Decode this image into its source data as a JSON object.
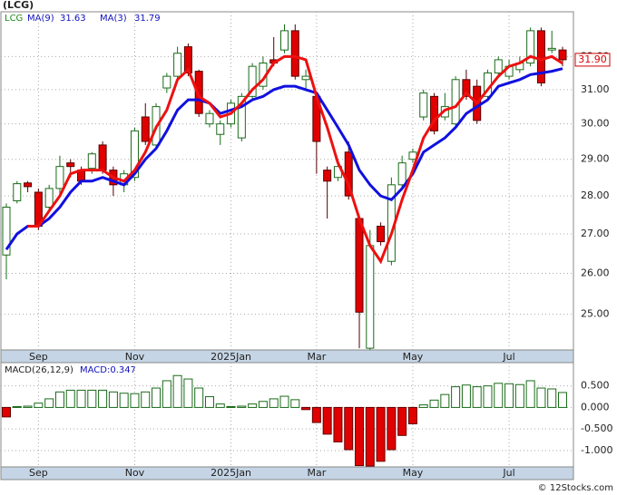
{
  "chart_data": {
    "type": "candlestick",
    "title": "(LCG)",
    "log": true,
    "grid": true,
    "categories": [
      null,
      null,
      null,
      "Sep",
      null,
      null,
      null,
      null,
      null,
      null,
      null,
      null,
      "Nov",
      null,
      null,
      null,
      null,
      null,
      null,
      null,
      null,
      "2025Jan",
      null,
      null,
      null,
      null,
      null,
      null,
      null,
      "Mar",
      null,
      null,
      null,
      null,
      null,
      null,
      null,
      null,
      "May",
      null,
      null,
      null,
      null,
      null,
      null,
      null,
      null,
      "Jul",
      null,
      null,
      null,
      null,
      null
    ],
    "candles": {
      "name": "LCG",
      "up_color": "#1a6b1a",
      "down_color": "#e00000",
      "open": [
        26.46,
        27.87,
        28.35,
        28.1,
        27.7,
        28.2,
        28.9,
        28.7,
        28.75,
        29.4,
        28.7,
        28.3,
        28.5,
        30.2,
        29.4,
        31.05,
        31.4,
        32.3,
        31.55,
        30.0,
        29.7,
        30.0,
        29.6,
        30.8,
        31.1,
        31.9,
        32.2,
        32.8,
        31.3,
        30.8,
        28.7,
        28.5,
        29.2,
        27.4,
        24.2,
        27.2,
        26.3,
        28.3,
        29.0,
        30.2,
        30.8,
        30.2,
        30.0,
        31.3,
        31.1,
        30.8,
        31.5,
        31.4,
        31.6,
        31.8,
        32.8,
        32.2,
        32.2
      ],
      "high": [
        27.8,
        28.4,
        28.4,
        28.2,
        28.3,
        29.1,
        29.0,
        28.8,
        29.2,
        29.5,
        28.8,
        28.7,
        29.9,
        30.6,
        30.6,
        31.5,
        32.3,
        32.4,
        31.6,
        30.4,
        30.1,
        30.7,
        30.9,
        31.8,
        32.0,
        32.6,
        33.0,
        33.0,
        31.6,
        30.9,
        28.8,
        29.0,
        29.5,
        27.5,
        27.1,
        27.3,
        28.5,
        29.1,
        29.3,
        31.0,
        30.9,
        30.9,
        31.4,
        31.6,
        31.3,
        31.6,
        32.0,
        31.9,
        32.0,
        32.9,
        32.9,
        32.8,
        32.3
      ],
      "low": [
        25.85,
        27.8,
        28.1,
        27.1,
        27.6,
        28.0,
        28.5,
        28.3,
        28.6,
        28.6,
        28.0,
        28.1,
        28.4,
        29.4,
        29.3,
        30.9,
        31.3,
        31.4,
        30.2,
        29.9,
        29.4,
        29.9,
        29.5,
        30.7,
        31.0,
        31.7,
        32.1,
        31.3,
        31.0,
        28.6,
        27.4,
        28.4,
        27.9,
        24.2,
        24.16,
        26.7,
        26.2,
        28.2,
        28.9,
        30.1,
        29.7,
        30.1,
        29.9,
        30.7,
        30.0,
        30.7,
        31.4,
        31.3,
        31.5,
        31.7,
        31.1,
        32.1,
        31.7
      ],
      "close": [
        27.7,
        28.33,
        28.25,
        27.2,
        28.2,
        28.8,
        28.8,
        28.4,
        29.15,
        28.7,
        28.3,
        28.6,
        29.8,
        29.5,
        30.5,
        31.4,
        32.1,
        31.5,
        30.3,
        30.3,
        30.0,
        30.6,
        30.8,
        31.7,
        31.8,
        31.8,
        32.8,
        31.4,
        31.4,
        29.5,
        28.4,
        28.8,
        28.0,
        25.05,
        26.7,
        26.8,
        28.3,
        28.9,
        29.2,
        30.9,
        29.8,
        30.5,
        31.3,
        30.8,
        30.1,
        31.5,
        31.9,
        31.7,
        31.8,
        32.8,
        31.2,
        32.25,
        31.9
      ],
      "last_label": "31.90"
    },
    "series": [
      {
        "name": "MA(9)",
        "legend_value": "31.63",
        "color": "#1010e0",
        "values": [
          26.6,
          27.0,
          27.2,
          27.2,
          27.4,
          27.7,
          28.1,
          28.4,
          28.4,
          28.5,
          28.4,
          28.3,
          28.6,
          29.0,
          29.3,
          29.8,
          30.4,
          30.7,
          30.7,
          30.6,
          30.3,
          30.4,
          30.5,
          30.7,
          30.8,
          31.0,
          31.1,
          31.1,
          31.0,
          30.9,
          30.4,
          29.9,
          29.4,
          28.7,
          28.3,
          28.0,
          27.9,
          28.2,
          28.6,
          29.2,
          29.4,
          29.6,
          29.9,
          30.3,
          30.5,
          30.7,
          31.1,
          31.2,
          31.3,
          31.45,
          31.5,
          31.55,
          31.63
        ]
      },
      {
        "name": "MA(3)",
        "legend_value": "31.79",
        "color": "#ee1010",
        "values": [
          null,
          null,
          27.2,
          27.2,
          27.6,
          28.0,
          28.6,
          28.7,
          28.7,
          28.7,
          28.5,
          28.4,
          28.7,
          29.2,
          29.9,
          30.4,
          31.3,
          31.6,
          30.8,
          30.6,
          30.2,
          30.3,
          30.6,
          31.0,
          31.3,
          31.8,
          32.0,
          32.0,
          31.9,
          30.8,
          29.9,
          28.9,
          28.3,
          27.4,
          26.7,
          26.3,
          27.0,
          27.9,
          28.7,
          29.6,
          30.1,
          30.4,
          30.5,
          30.9,
          30.6,
          31.0,
          31.4,
          31.7,
          31.8,
          32.0,
          31.9,
          32.0,
          31.79
        ]
      }
    ],
    "ylim": [
      24.16,
      33.4
    ],
    "yticks": [
      {
        "value": 25,
        "label": "25.00"
      },
      {
        "value": 26,
        "label": "26.00"
      },
      {
        "value": 27,
        "label": "27.00"
      },
      {
        "value": 28,
        "label": "28.00"
      },
      {
        "value": 29,
        "label": "29.00"
      },
      {
        "value": 30,
        "label": "30.00"
      },
      {
        "value": 31,
        "label": "31.00"
      },
      {
        "value": 32,
        "label": "32.00"
      }
    ],
    "macd": {
      "name": "MACD(26,12,9)",
      "label": "MACD:0.347",
      "values": [
        -0.22,
        0.02,
        0.03,
        0.1,
        0.2,
        0.36,
        0.4,
        0.4,
        0.4,
        0.4,
        0.36,
        0.33,
        0.32,
        0.36,
        0.45,
        0.62,
        0.74,
        0.66,
        0.45,
        0.25,
        0.08,
        0.02,
        0.03,
        0.08,
        0.14,
        0.2,
        0.26,
        0.18,
        -0.05,
        -0.35,
        -0.62,
        -0.8,
        -0.98,
        -1.35,
        -1.36,
        -1.25,
        -0.98,
        -0.65,
        -0.38,
        0.06,
        0.17,
        0.3,
        0.48,
        0.52,
        0.48,
        0.5,
        0.56,
        0.55,
        0.53,
        0.62,
        0.45,
        0.43,
        0.347
      ],
      "ylim": [
        -1.38,
        1.04
      ],
      "yticks": [
        {
          "value": 0.5,
          "label": "0.500"
        },
        {
          "value": 0,
          "label": "0.000"
        },
        {
          "value": -0.5,
          "label": "-0.500"
        },
        {
          "value": -1,
          "label": "-1.000"
        }
      ]
    },
    "footer": "© 12Stocks.com"
  }
}
